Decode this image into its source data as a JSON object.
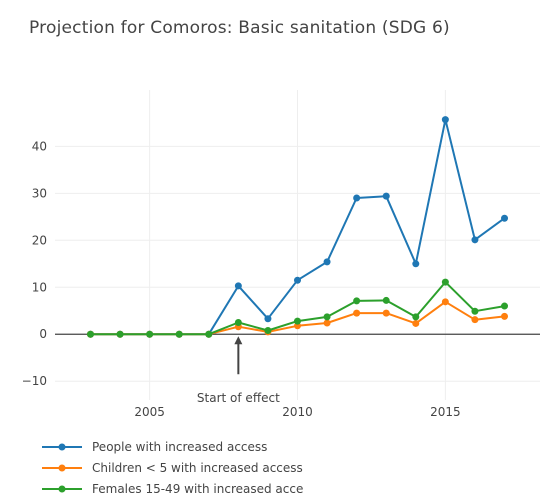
{
  "chart_data": {
    "type": "line",
    "title": "Projection for Comoros: Basic sanitation (SDG 6)",
    "x": [
      2003,
      2004,
      2005,
      2006,
      2007,
      2008,
      2009,
      2010,
      2011,
      2012,
      2013,
      2014,
      2015,
      2016,
      2017
    ],
    "series": [
      {
        "name": "People with increased access",
        "color": "#1f77b4",
        "values": [
          0,
          0,
          0,
          0,
          0,
          10.3,
          3.3,
          11.5,
          15.4,
          29.0,
          29.4,
          15.0,
          45.7,
          20.1,
          24.7
        ]
      },
      {
        "name": "Children < 5 with increased access",
        "color": "#ff7f0e",
        "values": [
          0,
          0,
          0,
          0,
          0,
          1.6,
          0.5,
          1.8,
          2.4,
          4.5,
          4.5,
          2.3,
          6.9,
          3.1,
          3.8
        ]
      },
      {
        "name": "Females 15-49 with increased acce",
        "color": "#2ca02c",
        "values": [
          0,
          0,
          0,
          0,
          0,
          2.5,
          0.8,
          2.8,
          3.7,
          7.1,
          7.2,
          3.7,
          11.1,
          4.9,
          6.0
        ]
      }
    ],
    "x_ticks": [
      2005,
      2010,
      2015
    ],
    "y_ticks": [
      -10,
      0,
      10,
      20,
      30,
      40
    ],
    "xlim": [
      2001.8,
      2018.2
    ],
    "ylim": [
      -14,
      52
    ],
    "grid": true,
    "legend_position": "bottom",
    "annotation": {
      "text": "Start of effect",
      "x": 2008,
      "y": 0
    }
  }
}
